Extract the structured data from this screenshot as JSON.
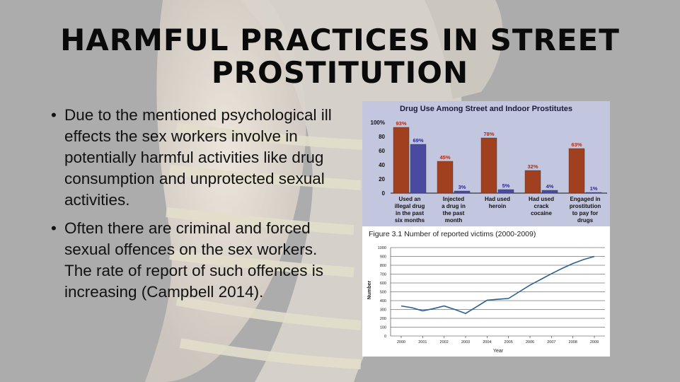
{
  "slide": {
    "title_line1": "HARMFUL PRACTICES IN STREET",
    "title_line2": "PROSTITUTION",
    "bullet_symbol": "•",
    "bullets": [
      "Due to the mentioned psychological ill effects the sex workers involve in potentially harmful activities like drug consumption and unprotected sexual activities.",
      "Often there are criminal and forced sexual offences on the sex workers. The rate of report of such offences is increasing (Campbell 2014)."
    ]
  },
  "colors": {
    "street": "#a0401f",
    "indoor": "#4a4aa0",
    "panel_bg": "#c3c6df",
    "line": "#2a5f8f"
  },
  "chart_data": [
    {
      "type": "bar",
      "title": "Drug Use Among Street and Indoor Prostitutes",
      "categories": [
        "Used an illegal drug in the past six months",
        "Injected a drug in the past month",
        "Had used heroin",
        "Had used crack cocaine",
        "Engaged in prostitution to pay for drugs"
      ],
      "category_lines": [
        [
          "Used an",
          "illegal drug",
          "in the past",
          "six months"
        ],
        [
          "Injected",
          "a drug in",
          "the past",
          "month"
        ],
        [
          "Had used",
          "heroin"
        ],
        [
          "Had used",
          "crack",
          "cocaine"
        ],
        [
          "Engaged in",
          "prostitution",
          "to pay for",
          "drugs"
        ]
      ],
      "series": [
        {
          "values": [
            93,
            45,
            78,
            32,
            63
          ],
          "labels": [
            "93%",
            "45%",
            "78%",
            "32%",
            "63%"
          ]
        },
        {
          "values": [
            69,
            3,
            5,
            4,
            1
          ],
          "labels": [
            "69%",
            "3%",
            "5%",
            "4%",
            "1%"
          ]
        }
      ],
      "y_ticks": [
        "0",
        "20",
        "40",
        "60",
        "80",
        "100%"
      ],
      "ylim": [
        0,
        100
      ]
    },
    {
      "type": "line",
      "title": "Figure 3.1  Number of reported victims (2000-2009)",
      "xlabel": "Year",
      "ylabel": "Number",
      "x": [
        "2000",
        "2001",
        "2002",
        "2003",
        "2004",
        "2005",
        "2006",
        "2007",
        "2008",
        "2009"
      ],
      "points": [
        {
          "x": 2000.0,
          "y": 340
        },
        {
          "x": 2000.5,
          "y": 320
        },
        {
          "x": 2001.0,
          "y": 285
        },
        {
          "x": 2001.5,
          "y": 310
        },
        {
          "x": 2002.0,
          "y": 340
        },
        {
          "x": 2002.5,
          "y": 300
        },
        {
          "x": 2003.0,
          "y": 255
        },
        {
          "x": 2003.5,
          "y": 330
        },
        {
          "x": 2004.0,
          "y": 405
        },
        {
          "x": 2004.5,
          "y": 415
        },
        {
          "x": 2005.0,
          "y": 425
        },
        {
          "x": 2005.5,
          "y": 500
        },
        {
          "x": 2006.0,
          "y": 575
        },
        {
          "x": 2006.5,
          "y": 640
        },
        {
          "x": 2007.0,
          "y": 705
        },
        {
          "x": 2007.5,
          "y": 765
        },
        {
          "x": 2008.0,
          "y": 820
        },
        {
          "x": 2008.5,
          "y": 865
        },
        {
          "x": 2009.0,
          "y": 900
        }
      ],
      "y_ticks": [
        "0",
        "100",
        "200",
        "300",
        "400",
        "500",
        "600",
        "700",
        "800",
        "900",
        "1000"
      ],
      "ylim": [
        0,
        1000
      ],
      "grid": true
    }
  ]
}
